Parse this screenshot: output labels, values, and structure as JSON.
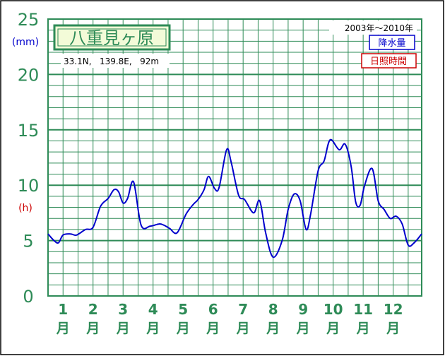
{
  "colors": {
    "axis": "#2e8b57",
    "grid": "#2e8b57",
    "frame": "#000000",
    "precip_line": "#0000cc",
    "sunshine_label": "#cc0000",
    "title_bg": "#f3fbd8",
    "title_border": "#2e8b57"
  },
  "header": {
    "station_name": "八重見ヶ原",
    "coordinates": "33.1N,   139.8E,   92m",
    "period": "2003年～2010年"
  },
  "legend": {
    "precipitation": "降水量",
    "sunshine": "日照時間"
  },
  "axis": {
    "unit_precip": "(mm)",
    "unit_sunshine": "(h)",
    "month_suffix": "月"
  },
  "chart_data": {
    "type": "line",
    "title": "八重見ヶ原",
    "y_ticks": [
      "0",
      "5",
      "10",
      "15",
      "20",
      "25"
    ],
    "ylim": [
      0,
      25
    ],
    "xlim": [
      0.5,
      12.95
    ],
    "x_ticks": [
      "1",
      "2",
      "3",
      "4",
      "5",
      "6",
      "7",
      "8",
      "9",
      "10",
      "11",
      "12"
    ],
    "x_tick_values": [
      1,
      2,
      3,
      4,
      5,
      6,
      7,
      8,
      9,
      10,
      11,
      12
    ],
    "grid": true,
    "legend_position": "top-right",
    "series": [
      {
        "name": "降水量",
        "x": [
          0.5,
          0.7,
          0.85,
          1.0,
          1.25,
          1.45,
          1.75,
          2.0,
          2.25,
          2.5,
          2.7,
          2.85,
          3.0,
          3.15,
          3.35,
          3.6,
          3.9,
          4.2,
          4.35,
          4.55,
          4.8,
          5.1,
          5.35,
          5.5,
          5.7,
          5.85,
          6.05,
          6.2,
          6.45,
          6.6,
          6.85,
          7.05,
          7.35,
          7.55,
          7.75,
          8.0,
          8.3,
          8.5,
          8.7,
          8.9,
          9.1,
          9.25,
          9.5,
          9.7,
          9.9,
          10.2,
          10.4,
          10.6,
          10.75,
          10.9,
          11.05,
          11.3,
          11.5,
          11.7,
          11.9,
          12.1,
          12.3,
          12.5,
          12.7,
          12.95
        ],
        "values": [
          5.6,
          5.0,
          4.8,
          5.5,
          5.6,
          5.5,
          6.0,
          6.2,
          8.1,
          8.8,
          9.6,
          9.4,
          8.4,
          8.8,
          10.3,
          6.4,
          6.3,
          6.5,
          6.4,
          6.1,
          5.7,
          7.4,
          8.3,
          8.7,
          9.6,
          10.8,
          9.7,
          9.8,
          13.2,
          12.1,
          9.1,
          8.7,
          7.5,
          8.6,
          5.7,
          3.5,
          5.0,
          7.8,
          9.2,
          8.6,
          6.0,
          7.4,
          11.3,
          12.2,
          14.1,
          13.2,
          13.7,
          11.7,
          8.5,
          8.2,
          10.0,
          11.5,
          8.6,
          7.8,
          7.0,
          7.2,
          6.5,
          4.6,
          4.8,
          5.6
        ]
      }
    ]
  }
}
